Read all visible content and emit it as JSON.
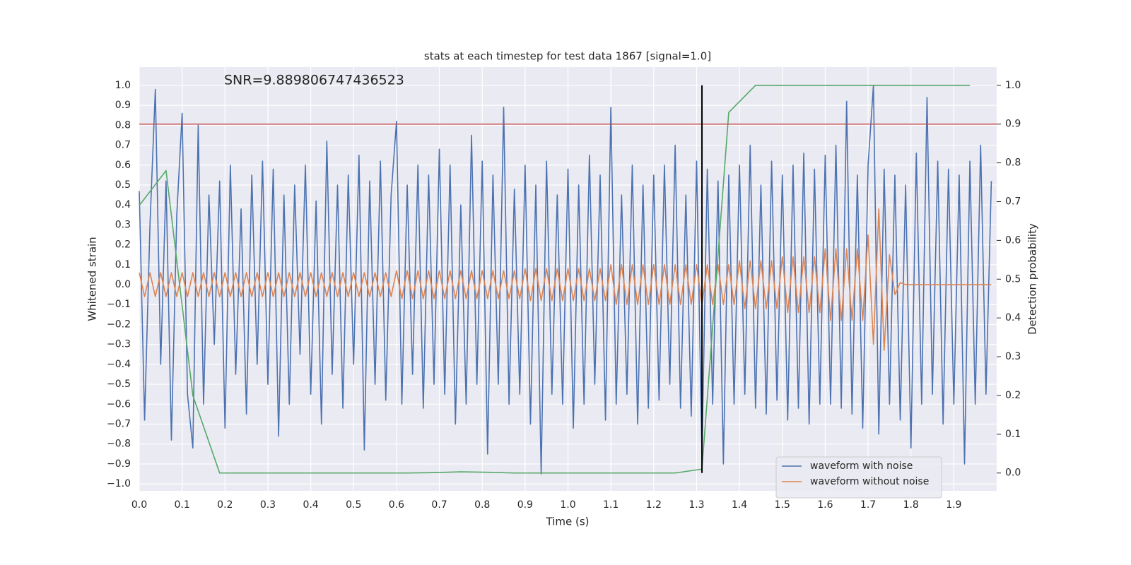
{
  "chart_data": {
    "type": "line",
    "title": "stats at each timestep for test data 1867 [signal=1.0]",
    "annotation": "SNR=9.889806747436523",
    "x_label": "Time (s)",
    "y_label": "Whitened strain",
    "y2_label": "Detection probability",
    "grid": true,
    "legend": "lower right",
    "xlim": [
      0,
      2.0
    ],
    "ylim": [
      -1.035,
      1.092
    ],
    "y2lim": [
      -0.046,
      1.047
    ],
    "xticks": [
      {
        "value": 0,
        "label": "0.0"
      },
      0.1,
      0.2,
      0.3,
      0.4,
      0.5,
      0.6,
      0.7,
      0.8,
      0.9,
      {
        "value": 1,
        "label": "1.0"
      },
      1.1,
      1.2,
      1.3,
      1.4,
      1.5,
      1.6,
      1.7,
      1.8,
      1.9
    ],
    "yticks": [
      {
        "value": -1,
        "label": "−1.0"
      },
      {
        "value": -0.9,
        "label": "−0.9"
      },
      {
        "value": -0.8,
        "label": "−0.8"
      },
      {
        "value": -0.7,
        "label": "−0.7"
      },
      {
        "value": -0.6,
        "label": "−0.6"
      },
      {
        "value": -0.5,
        "label": "−0.5"
      },
      {
        "value": -0.4,
        "label": "−0.4"
      },
      {
        "value": -0.3,
        "label": "−0.3"
      },
      {
        "value": -0.2,
        "label": "−0.2"
      },
      {
        "value": -0.1,
        "label": "−0.1"
      },
      {
        "value": 0,
        "label": "0.0"
      },
      0.1,
      0.2,
      0.3,
      0.4,
      0.5,
      0.6,
      0.7,
      0.8,
      0.9,
      {
        "value": 1,
        "label": "1.0"
      }
    ],
    "y2ticks": [
      {
        "value": 0,
        "label": "0.0"
      },
      0.1,
      0.2,
      0.3,
      0.4,
      0.5,
      0.6,
      0.7,
      0.8,
      0.9,
      {
        "value": 1,
        "label": "1.0"
      }
    ],
    "x": [
      0,
      0.0125,
      0.025,
      0.0375,
      0.05,
      0.0625,
      0.075,
      0.0875,
      0.1,
      0.1125,
      0.125,
      0.1375,
      0.15,
      0.1625,
      0.175,
      0.1875,
      0.2,
      0.2125,
      0.225,
      0.2375,
      0.25,
      0.2625,
      0.275,
      0.2875,
      0.3,
      0.3125,
      0.325,
      0.3375,
      0.35,
      0.3625,
      0.375,
      0.3875,
      0.4,
      0.4125,
      0.425,
      0.4375,
      0.45,
      0.4625,
      0.475,
      0.4875,
      0.5,
      0.5125,
      0.525,
      0.5375,
      0.55,
      0.5625,
      0.575,
      0.5875,
      0.6,
      0.6125,
      0.625,
      0.6375,
      0.65,
      0.6625,
      0.675,
      0.6875,
      0.7,
      0.7125,
      0.725,
      0.7375,
      0.75,
      0.7625,
      0.775,
      0.7875,
      0.8,
      0.8125,
      0.825,
      0.8375,
      0.85,
      0.8625,
      0.875,
      0.8875,
      0.9,
      0.9125,
      0.925,
      0.9375,
      0.95,
      0.9625,
      0.975,
      0.9875,
      1.0,
      1.0125,
      1.025,
      1.0375,
      1.05,
      1.0625,
      1.075,
      1.0875,
      1.1,
      1.1125,
      1.125,
      1.1375,
      1.15,
      1.1625,
      1.175,
      1.1875,
      1.2,
      1.2125,
      1.225,
      1.2375,
      1.25,
      1.2625,
      1.275,
      1.2875,
      1.3,
      1.3125,
      1.325,
      1.3375,
      1.35,
      1.3625,
      1.375,
      1.3875,
      1.4,
      1.4125,
      1.425,
      1.4375,
      1.45,
      1.4625,
      1.475,
      1.4875,
      1.5,
      1.5125,
      1.525,
      1.5375,
      1.55,
      1.5625,
      1.575,
      1.5875,
      1.6,
      1.6125,
      1.625,
      1.6375,
      1.65,
      1.6625,
      1.675,
      1.6875,
      1.7,
      1.7125,
      1.725,
      1.7375,
      1.75,
      1.7625,
      1.775,
      1.7875,
      1.8,
      1.8125,
      1.825,
      1.8375,
      1.85,
      1.8625,
      1.875,
      1.8875,
      1.9,
      1.9125,
      1.925,
      1.9375,
      1.95,
      1.9625,
      1.975,
      1.9875
    ],
    "series": [
      {
        "name": "waveform with noise",
        "color": "#4c72b0",
        "values": [
          0.47,
          -0.68,
          0.3,
          0.98,
          -0.4,
          0.52,
          -0.78,
          0.35,
          0.86,
          -0.55,
          -0.82,
          0.8,
          -0.6,
          0.45,
          -0.3,
          0.52,
          -0.72,
          0.6,
          -0.45,
          0.38,
          -0.65,
          0.55,
          -0.4,
          0.62,
          -0.5,
          0.58,
          -0.76,
          0.45,
          -0.6,
          0.5,
          -0.35,
          0.6,
          -0.55,
          0.42,
          -0.7,
          0.72,
          -0.45,
          0.5,
          -0.62,
          0.55,
          -0.4,
          0.65,
          -0.83,
          0.52,
          -0.5,
          0.62,
          -0.58,
          0.45,
          0.82,
          -0.6,
          0.5,
          -0.45,
          0.6,
          -0.62,
          0.55,
          -0.5,
          0.68,
          -0.55,
          0.6,
          -0.7,
          0.4,
          -0.6,
          0.75,
          -0.5,
          0.62,
          -0.85,
          0.55,
          -0.5,
          0.89,
          -0.6,
          0.48,
          -0.55,
          0.6,
          -0.7,
          0.5,
          -0.95,
          0.62,
          -0.55,
          0.45,
          -0.6,
          0.58,
          -0.72,
          0.5,
          -0.6,
          0.65,
          -0.5,
          0.55,
          -0.68,
          0.89,
          -0.6,
          0.45,
          -0.55,
          0.6,
          -0.7,
          0.5,
          -0.62,
          0.55,
          -0.58,
          0.6,
          -0.5,
          0.7,
          -0.62,
          0.45,
          -0.66,
          0.62,
          -0.86,
          0.58,
          -0.6,
          0.52,
          -0.9,
          0.55,
          -0.6,
          0.6,
          -0.55,
          0.7,
          -0.62,
          0.5,
          -0.65,
          0.62,
          -0.58,
          0.55,
          -0.68,
          0.6,
          -0.62,
          0.66,
          -0.7,
          0.58,
          -0.6,
          0.65,
          -0.6,
          0.7,
          -0.62,
          0.92,
          -0.65,
          0.55,
          -0.72,
          0.6,
          1.0,
          -0.75,
          0.58,
          -0.6,
          0.55,
          -0.68,
          0.5,
          -0.82,
          0.66,
          -0.6,
          0.94,
          -0.55,
          0.62,
          -0.7,
          0.58,
          -0.6,
          0.55,
          -0.9,
          0.62,
          -0.6,
          0.7,
          -0.55,
          0.52
        ]
      },
      {
        "name": "waveform without noise",
        "color": "#dd8452",
        "values": [
          0.06,
          -0.06,
          0.06,
          -0.06,
          0.06,
          -0.06,
          0.06,
          -0.06,
          0.06,
          -0.06,
          0.06,
          -0.06,
          0.06,
          -0.06,
          0.06,
          -0.06,
          0.06,
          -0.06,
          0.06,
          -0.06,
          0.06,
          -0.06,
          0.06,
          -0.06,
          0.06,
          -0.06,
          0.06,
          -0.06,
          0.06,
          -0.06,
          0.06,
          -0.06,
          0.06,
          -0.06,
          0.06,
          -0.06,
          0.06,
          -0.06,
          0.06,
          -0.06,
          0.06,
          -0.06,
          0.06,
          -0.06,
          0.06,
          -0.06,
          0.06,
          -0.06,
          0.07,
          -0.07,
          0.07,
          -0.07,
          0.07,
          -0.07,
          0.07,
          -0.07,
          0.07,
          -0.07,
          0.07,
          -0.07,
          0.07,
          -0.07,
          0.07,
          -0.07,
          0.07,
          -0.07,
          0.07,
          -0.07,
          0.07,
          -0.07,
          0.07,
          -0.07,
          0.08,
          -0.08,
          0.08,
          -0.08,
          0.08,
          -0.08,
          0.08,
          -0.08,
          0.08,
          -0.08,
          0.08,
          -0.08,
          0.08,
          -0.08,
          0.08,
          -0.08,
          0.1,
          -0.1,
          0.1,
          -0.1,
          0.1,
          -0.1,
          0.1,
          -0.1,
          0.1,
          -0.1,
          0.1,
          -0.1,
          0.1,
          -0.1,
          0.1,
          -0.1,
          0.1,
          -0.1,
          0.1,
          -0.1,
          0.1,
          -0.1,
          0.1,
          -0.1,
          0.12,
          -0.12,
          0.12,
          -0.12,
          0.12,
          -0.12,
          0.12,
          -0.12,
          0.14,
          -0.14,
          0.14,
          -0.14,
          0.14,
          -0.14,
          0.14,
          -0.14,
          0.18,
          -0.18,
          0.18,
          -0.18,
          0.18,
          -0.18,
          0.18,
          -0.18,
          0.25,
          -0.3,
          0.38,
          -0.33,
          0.15,
          -0.05,
          0.01,
          0,
          0,
          0,
          0,
          0,
          0,
          0,
          0,
          0,
          0,
          0,
          0,
          0,
          0,
          0,
          0,
          0
        ]
      },
      {
        "color": "#55a868",
        "axis": "y2",
        "x": [
          0,
          0.0625,
          0.125,
          0.1875,
          0.25,
          0.3125,
          0.375,
          0.4375,
          0.5,
          0.5625,
          0.625,
          0.6875,
          0.75,
          0.8125,
          0.875,
          0.9375,
          1.0,
          1.0625,
          1.125,
          1.1875,
          1.25,
          1.3125,
          1.375,
          1.4375,
          1.5,
          1.5625,
          1.625,
          1.6875,
          1.75,
          1.8125,
          1.875,
          1.9375
        ],
        "values": [
          0.69,
          0.78,
          0.2,
          0.0,
          0.0,
          0.0,
          0.0,
          0.0,
          0.0,
          0.0,
          0.0,
          0.001,
          0.003,
          0.002,
          0.0,
          0.0,
          0.0,
          0.0,
          0.0,
          0.0,
          0.0,
          0.01,
          0.93,
          1.0,
          1.0,
          1.0,
          1.0,
          1.0,
          1.0,
          1.0,
          1.0,
          1.0
        ]
      }
    ],
    "hlines": [
      {
        "y": 0.9,
        "axis": "y2",
        "color": "#c44e52"
      }
    ],
    "vlines": [
      {
        "x": 1.3125,
        "ymin": 0,
        "ymax": 1,
        "axis": "y2",
        "color": "#000000"
      }
    ]
  }
}
